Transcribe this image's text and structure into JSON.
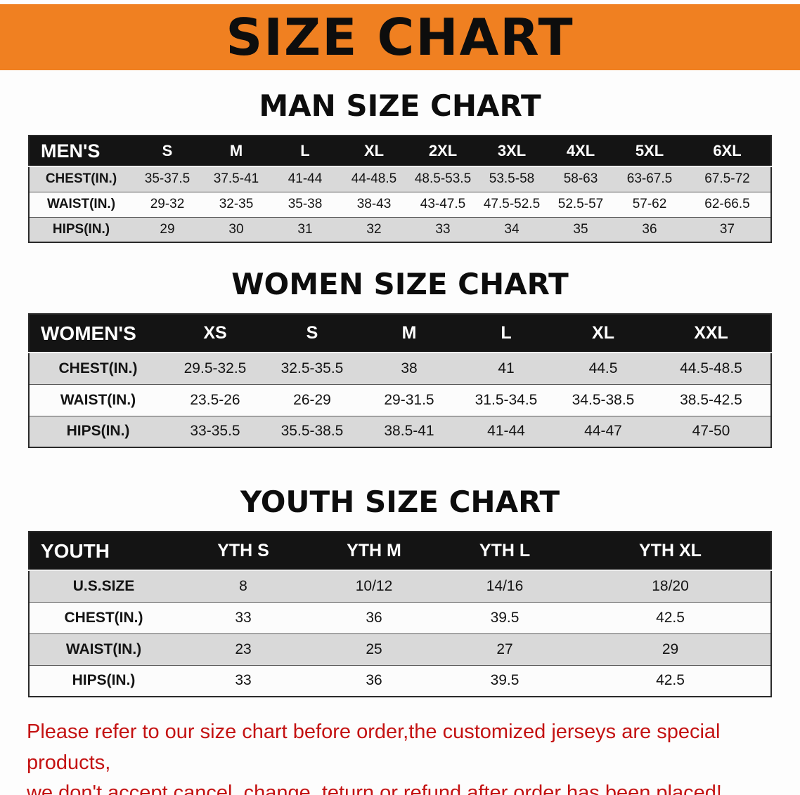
{
  "banner": {
    "title": "SIZE CHART"
  },
  "colors": {
    "banner_orange": "#f08021",
    "table_header_black": "#141414",
    "row_alt_gray": "#d9d9d9",
    "note_red": "#c41212"
  },
  "sections": [
    {
      "heading": "MAN SIZE CHART",
      "table": {
        "header_label": "MEN'S",
        "columns": [
          "S",
          "M",
          "L",
          "XL",
          "2XL",
          "3XL",
          "4XL",
          "5XL",
          "6XL"
        ],
        "rows": [
          {
            "label": "CHEST(IN.)",
            "values": [
              "35-37.5",
              "37.5-41",
              "41-44",
              "44-48.5",
              "48.5-53.5",
              "53.5-58",
              "58-63",
              "63-67.5",
              "67.5-72"
            ]
          },
          {
            "label": "WAIST(IN.)",
            "values": [
              "29-32",
              "32-35",
              "35-38",
              "38-43",
              "43-47.5",
              "47.5-52.5",
              "52.5-57",
              "57-62",
              "62-66.5"
            ]
          },
          {
            "label": "HIPS(IN.)",
            "values": [
              "29",
              "30",
              "31",
              "32",
              "33",
              "34",
              "35",
              "36",
              "37"
            ]
          }
        ]
      }
    },
    {
      "heading": "WOMEN SIZE CHART",
      "table": {
        "header_label": "WOMEN'S",
        "columns": [
          "XS",
          "S",
          "M",
          "L",
          "XL",
          "XXL"
        ],
        "rows": [
          {
            "label": "CHEST(IN.)",
            "values": [
              "29.5-32.5",
              "32.5-35.5",
              "38",
              "41",
              "44.5",
              "44.5-48.5"
            ]
          },
          {
            "label": "WAIST(IN.)",
            "values": [
              "23.5-26",
              "26-29",
              "29-31.5",
              "31.5-34.5",
              "34.5-38.5",
              "38.5-42.5"
            ]
          },
          {
            "label": "HIPS(IN.)",
            "values": [
              "33-35.5",
              "35.5-38.5",
              "38.5-41",
              "41-44",
              "44-47",
              "47-50"
            ]
          }
        ]
      }
    },
    {
      "heading": "YOUTH SIZE CHART",
      "table": {
        "header_label": "YOUTH",
        "columns": [
          "YTH S",
          "YTH M",
          "YTH L",
          "YTH XL"
        ],
        "rows": [
          {
            "label": "U.S.SIZE",
            "values": [
              "8",
              "10/12",
              "14/16",
              "18/20"
            ]
          },
          {
            "label": "CHEST(IN.)",
            "values": [
              "33",
              "36",
              "39.5",
              "42.5"
            ]
          },
          {
            "label": "WAIST(IN.)",
            "values": [
              "23",
              "25",
              "27",
              "29"
            ]
          },
          {
            "label": "HIPS(IN.)",
            "values": [
              "33",
              "36",
              "39.5",
              "42.5"
            ]
          }
        ]
      }
    }
  ],
  "footer": {
    "line1": "Please refer to our size chart before order,the customized jerseys are special products,",
    "line2": "we don't accept cancel, change, teturn or refund after order has been placed!"
  }
}
